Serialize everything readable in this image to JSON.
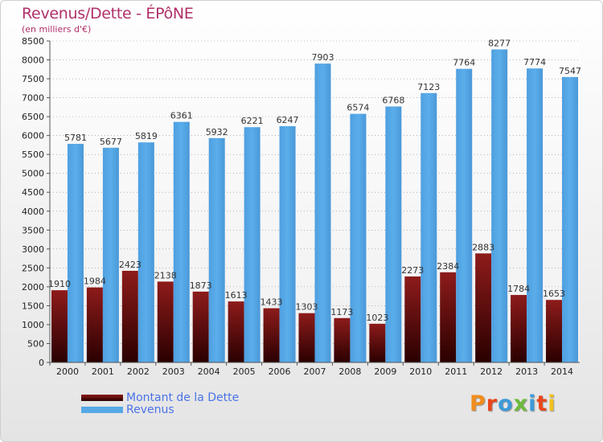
{
  "header": {
    "title": "Revenus/Dette - ÉPôNE",
    "subtitle": "(en milliers d'€)"
  },
  "legend": {
    "debt_label": "Montant de la Dette",
    "revenue_label": "Revenus"
  },
  "logo": {
    "text": "Proxiti",
    "letter_colors": [
      "#f28c1e",
      "#e8471b",
      "#3d9ad8",
      "#6cbb3c",
      "#3d9ad8",
      "#e8471b",
      "#f2c21e"
    ]
  },
  "colors": {
    "debt_top": "#8e1b1b",
    "debt_bottom": "#2a0000",
    "revenue": "#56a9e6",
    "title": "#b0306a"
  },
  "chart_data": {
    "type": "bar",
    "title": "Revenus/Dette - ÉPôNE",
    "ylabel": "(en milliers d'€)",
    "xlabel": "",
    "ylim": [
      0,
      8500
    ],
    "ytick_step": 500,
    "categories": [
      "2000",
      "2001",
      "2002",
      "2003",
      "2004",
      "2005",
      "2006",
      "2007",
      "2008",
      "2009",
      "2010",
      "2011",
      "2012",
      "2013",
      "2014"
    ],
    "series": [
      {
        "name": "Montant de la Dette",
        "values": [
          1910,
          1984,
          2423,
          2138,
          1873,
          1613,
          1433,
          1303,
          1173,
          1023,
          2273,
          2384,
          2883,
          1784,
          1653
        ],
        "labels": [
          "1910",
          "1984",
          "2423",
          "2138",
          "1873",
          "1613",
          "1433",
          "1303",
          "1173",
          "1023",
          "2273",
          "2384",
          "2883",
          "1784",
          "1653"
        ]
      },
      {
        "name": "Revenus",
        "values": [
          5781,
          5677,
          5819,
          6361,
          5932,
          6221,
          6247,
          7903,
          6574,
          6768,
          7123,
          7764,
          8277,
          7774,
          7547
        ],
        "labels": [
          "5781",
          "5677",
          "5819",
          "6361",
          "5932",
          "6221",
          "6247",
          "7903",
          "6574",
          "6768",
          "7123",
          "7764",
          "8277",
          "7774",
          "7547"
        ]
      }
    ]
  }
}
